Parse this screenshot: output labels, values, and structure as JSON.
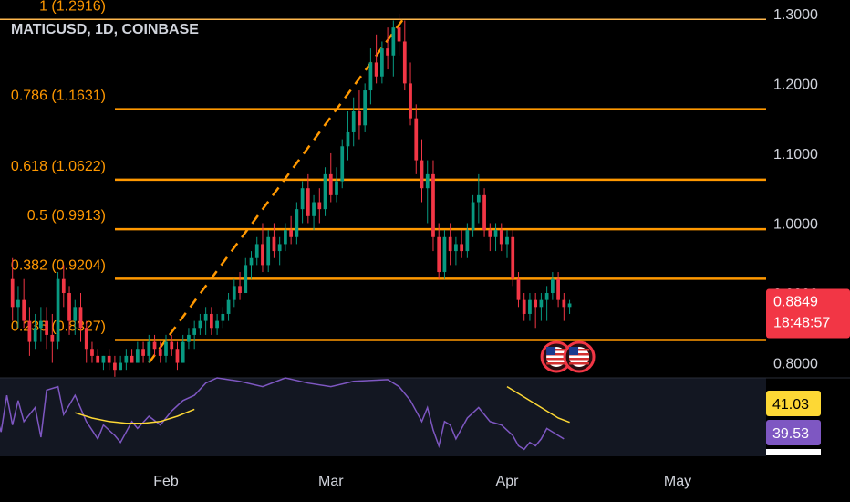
{
  "chart_data": {
    "type": "candlestick",
    "symbol_label": "MATICUSD, 1D, COINBASE",
    "ylim": [
      0.7785,
      1.3194
    ],
    "y_ticks": [
      "1.3000",
      "1.2000",
      "1.1000",
      "1.0000",
      "0.9000",
      "0.8000"
    ],
    "x_ticks": [
      {
        "label": "Feb",
        "day": 31
      },
      {
        "label": "Mar",
        "day": 60
      },
      {
        "label": "Apr",
        "day": 91
      },
      {
        "label": "May",
        "day": 121
      }
    ],
    "fib_levels": [
      {
        "ratio": 1,
        "price": 1.2916,
        "label": "1 (1.2916)"
      },
      {
        "ratio": 0.786,
        "price": 1.1631,
        "label": "0.786 (1.1631)"
      },
      {
        "ratio": 0.618,
        "price": 1.0622,
        "label": "0.618 (1.0622)"
      },
      {
        "ratio": 0.5,
        "price": 0.9913,
        "label": "0.5 (0.9913)"
      },
      {
        "ratio": 0.382,
        "price": 0.9204,
        "label": "0.382 (0.9204)"
      },
      {
        "ratio": 0.236,
        "price": 0.8327,
        "label": "0.236 (0.8327)"
      }
    ],
    "trend_line": {
      "from": {
        "day": 28,
        "price": 0.8
      },
      "to": {
        "day": 73,
        "price": 1.295
      }
    },
    "last_price": {
      "value": "0.8849",
      "countdown": "18:48:57"
    },
    "event_markers_days": [
      100,
      104
    ],
    "candles": [
      [
        4,
        0.92,
        0.95,
        0.86,
        0.88
      ],
      [
        5,
        0.88,
        0.91,
        0.85,
        0.89
      ],
      [
        6,
        0.89,
        0.92,
        0.85,
        0.86
      ],
      [
        7,
        0.86,
        0.88,
        0.81,
        0.83
      ],
      [
        8,
        0.83,
        0.87,
        0.82,
        0.85
      ],
      [
        9,
        0.85,
        0.88,
        0.83,
        0.86
      ],
      [
        10,
        0.86,
        0.88,
        0.82,
        0.84
      ],
      [
        11,
        0.84,
        0.87,
        0.8,
        0.83
      ],
      [
        12,
        0.83,
        0.93,
        0.82,
        0.92
      ],
      [
        13,
        0.92,
        0.94,
        0.88,
        0.9
      ],
      [
        14,
        0.9,
        0.91,
        0.84,
        0.86
      ],
      [
        15,
        0.86,
        0.89,
        0.84,
        0.88
      ],
      [
        16,
        0.88,
        0.9,
        0.83,
        0.85
      ],
      [
        17,
        0.85,
        0.86,
        0.8,
        0.82
      ],
      [
        18,
        0.82,
        0.83,
        0.8,
        0.81
      ],
      [
        19,
        0.81,
        0.82,
        0.8,
        0.8
      ],
      [
        20,
        0.8,
        0.81,
        0.79,
        0.81
      ],
      [
        21,
        0.81,
        0.82,
        0.79,
        0.8
      ],
      [
        22,
        0.8,
        0.81,
        0.78,
        0.79
      ],
      [
        23,
        0.79,
        0.81,
        0.79,
        0.8
      ],
      [
        24,
        0.8,
        0.82,
        0.79,
        0.81
      ],
      [
        25,
        0.81,
        0.82,
        0.8,
        0.8
      ],
      [
        26,
        0.8,
        0.83,
        0.8,
        0.82
      ],
      [
        27,
        0.82,
        0.83,
        0.8,
        0.81
      ],
      [
        28,
        0.81,
        0.84,
        0.8,
        0.83
      ],
      [
        29,
        0.83,
        0.84,
        0.81,
        0.82
      ],
      [
        30,
        0.82,
        0.83,
        0.8,
        0.81
      ],
      [
        31,
        0.81,
        0.84,
        0.8,
        0.83
      ],
      [
        32,
        0.83,
        0.84,
        0.81,
        0.82
      ],
      [
        33,
        0.82,
        0.83,
        0.79,
        0.8
      ],
      [
        34,
        0.8,
        0.84,
        0.8,
        0.83
      ],
      [
        35,
        0.83,
        0.85,
        0.82,
        0.84
      ],
      [
        36,
        0.84,
        0.86,
        0.82,
        0.85
      ],
      [
        37,
        0.85,
        0.87,
        0.84,
        0.86
      ],
      [
        38,
        0.86,
        0.88,
        0.84,
        0.87
      ],
      [
        39,
        0.87,
        0.88,
        0.84,
        0.85
      ],
      [
        40,
        0.85,
        0.87,
        0.84,
        0.86
      ],
      [
        41,
        0.86,
        0.88,
        0.85,
        0.87
      ],
      [
        42,
        0.87,
        0.9,
        0.86,
        0.89
      ],
      [
        43,
        0.89,
        0.92,
        0.88,
        0.91
      ],
      [
        44,
        0.91,
        0.93,
        0.89,
        0.9
      ],
      [
        45,
        0.9,
        0.95,
        0.9,
        0.94
      ],
      [
        46,
        0.94,
        0.96,
        0.92,
        0.95
      ],
      [
        47,
        0.95,
        0.98,
        0.94,
        0.97
      ],
      [
        48,
        0.97,
        1.0,
        0.93,
        0.94
      ],
      [
        49,
        0.94,
        0.99,
        0.93,
        0.98
      ],
      [
        50,
        0.98,
        1.0,
        0.95,
        0.96
      ],
      [
        51,
        0.96,
        0.98,
        0.94,
        0.97
      ],
      [
        52,
        0.97,
        1.0,
        0.96,
        0.99
      ],
      [
        53,
        0.99,
        1.01,
        0.97,
        0.98
      ],
      [
        54,
        0.98,
        1.03,
        0.97,
        1.02
      ],
      [
        55,
        1.02,
        1.06,
        1.0,
        1.05
      ],
      [
        56,
        1.05,
        1.07,
        1.0,
        1.01
      ],
      [
        57,
        1.01,
        1.04,
        0.99,
        1.03
      ],
      [
        58,
        1.03,
        1.05,
        1.0,
        1.02
      ],
      [
        59,
        1.02,
        1.08,
        1.01,
        1.07
      ],
      [
        60,
        1.07,
        1.1,
        1.03,
        1.04
      ],
      [
        61,
        1.04,
        1.08,
        1.03,
        1.06
      ],
      [
        62,
        1.06,
        1.12,
        1.05,
        1.11
      ],
      [
        63,
        1.11,
        1.16,
        1.09,
        1.13
      ],
      [
        64,
        1.13,
        1.18,
        1.11,
        1.16
      ],
      [
        65,
        1.16,
        1.19,
        1.12,
        1.14
      ],
      [
        66,
        1.14,
        1.2,
        1.13,
        1.19
      ],
      [
        67,
        1.19,
        1.25,
        1.17,
        1.23
      ],
      [
        68,
        1.23,
        1.27,
        1.2,
        1.21
      ],
      [
        69,
        1.21,
        1.26,
        1.2,
        1.25
      ],
      [
        70,
        1.25,
        1.28,
        1.22,
        1.24
      ],
      [
        71,
        1.24,
        1.29,
        1.21,
        1.28
      ],
      [
        72,
        1.28,
        1.3,
        1.24,
        1.26
      ],
      [
        73,
        1.26,
        1.29,
        1.19,
        1.2
      ],
      [
        74,
        1.2,
        1.23,
        1.14,
        1.15
      ],
      [
        75,
        1.15,
        1.17,
        1.07,
        1.09
      ],
      [
        76,
        1.09,
        1.12,
        1.03,
        1.05
      ],
      [
        77,
        1.05,
        1.09,
        1.0,
        1.07
      ],
      [
        78,
        1.07,
        1.09,
        0.96,
        0.98
      ],
      [
        79,
        0.98,
        1.0,
        0.92,
        0.93
      ],
      [
        80,
        0.93,
        0.99,
        0.92,
        0.98
      ],
      [
        81,
        0.98,
        1.0,
        0.94,
        0.96
      ],
      [
        82,
        0.96,
        0.98,
        0.94,
        0.97
      ],
      [
        83,
        0.97,
        0.99,
        0.95,
        0.96
      ],
      [
        84,
        0.96,
        1.0,
        0.95,
        0.99
      ],
      [
        85,
        0.99,
        1.04,
        0.98,
        1.03
      ],
      [
        86,
        1.03,
        1.07,
        1.0,
        1.04
      ],
      [
        87,
        1.04,
        1.05,
        0.98,
        0.99
      ],
      [
        88,
        0.99,
        1.0,
        0.96,
        0.98
      ],
      [
        89,
        0.98,
        1.0,
        0.96,
        0.99
      ],
      [
        90,
        0.99,
        1.0,
        0.96,
        0.97
      ],
      [
        91,
        0.97,
        0.99,
        0.95,
        0.98
      ],
      [
        92,
        0.98,
        0.99,
        0.91,
        0.92
      ],
      [
        93,
        0.92,
        0.93,
        0.88,
        0.89
      ],
      [
        94,
        0.89,
        0.9,
        0.86,
        0.87
      ],
      [
        95,
        0.87,
        0.9,
        0.86,
        0.89
      ],
      [
        96,
        0.89,
        0.9,
        0.85,
        0.88
      ],
      [
        97,
        0.88,
        0.9,
        0.86,
        0.89
      ],
      [
        98,
        0.89,
        0.91,
        0.86,
        0.9
      ],
      [
        99,
        0.9,
        0.93,
        0.89,
        0.92
      ],
      [
        100,
        0.92,
        0.93,
        0.88,
        0.89
      ],
      [
        101,
        0.89,
        0.9,
        0.86,
        0.88
      ],
      [
        102,
        0.88,
        0.89,
        0.87,
        0.885
      ]
    ],
    "rsi": {
      "value": "41.03",
      "ma_value": "39.53",
      "ylim": [
        20,
        65
      ],
      "rsi_points": [
        [
          1,
          45
        ],
        [
          2,
          34
        ],
        [
          3,
          55
        ],
        [
          4,
          38
        ],
        [
          5,
          52
        ],
        [
          6,
          40
        ],
        [
          8,
          48
        ],
        [
          9,
          31
        ],
        [
          10,
          58
        ],
        [
          12,
          60
        ],
        [
          13,
          44
        ],
        [
          15,
          55
        ],
        [
          17,
          40
        ],
        [
          18,
          35
        ],
        [
          19,
          30
        ],
        [
          20,
          38
        ],
        [
          22,
          32
        ],
        [
          23,
          28
        ],
        [
          25,
          40
        ],
        [
          26,
          36
        ],
        [
          28,
          43
        ],
        [
          30,
          38
        ],
        [
          32,
          46
        ],
        [
          34,
          52
        ],
        [
          36,
          55
        ],
        [
          38,
          62
        ],
        [
          40,
          65
        ],
        [
          44,
          63
        ],
        [
          48,
          60
        ],
        [
          52,
          65
        ],
        [
          56,
          62
        ],
        [
          60,
          60
        ],
        [
          64,
          63
        ],
        [
          70,
          64
        ],
        [
          72,
          60
        ],
        [
          74,
          52
        ],
        [
          76,
          40
        ],
        [
          77,
          48
        ],
        [
          78,
          35
        ],
        [
          79,
          26
        ],
        [
          80,
          40
        ],
        [
          81,
          38
        ],
        [
          82,
          30
        ],
        [
          84,
          42
        ],
        [
          86,
          48
        ],
        [
          88,
          40
        ],
        [
          90,
          38
        ],
        [
          92,
          32
        ],
        [
          93,
          26
        ],
        [
          94,
          24
        ],
        [
          95,
          28
        ],
        [
          96,
          26
        ],
        [
          97,
          30
        ],
        [
          98,
          36
        ],
        [
          100,
          32
        ],
        [
          101,
          30
        ]
      ],
      "ma_points": [
        [
          15,
          45
        ],
        [
          18,
          42
        ],
        [
          21,
          40
        ],
        [
          24,
          39
        ],
        [
          27,
          39
        ],
        [
          30,
          40
        ],
        [
          33,
          43
        ],
        [
          36,
          47
        ],
        [
          91,
          60
        ],
        [
          94,
          54
        ],
        [
          97,
          48
        ],
        [
          100,
          42
        ],
        [
          102,
          39.5
        ]
      ]
    }
  },
  "colors": {
    "background": "#000000",
    "up": "#089981",
    "down": "#f23645",
    "fib": "#ff9800",
    "fib_top": "#ffb74d",
    "rsi_line": "#7e57c2",
    "rsi_ma": "#fdd835",
    "rsi_band": "#131722",
    "axis_text": "#d1d4dc",
    "price_badge": "#f23645",
    "rsi_badge": "#fdd835",
    "rsi_ma_badge": "#7e57c2"
  }
}
